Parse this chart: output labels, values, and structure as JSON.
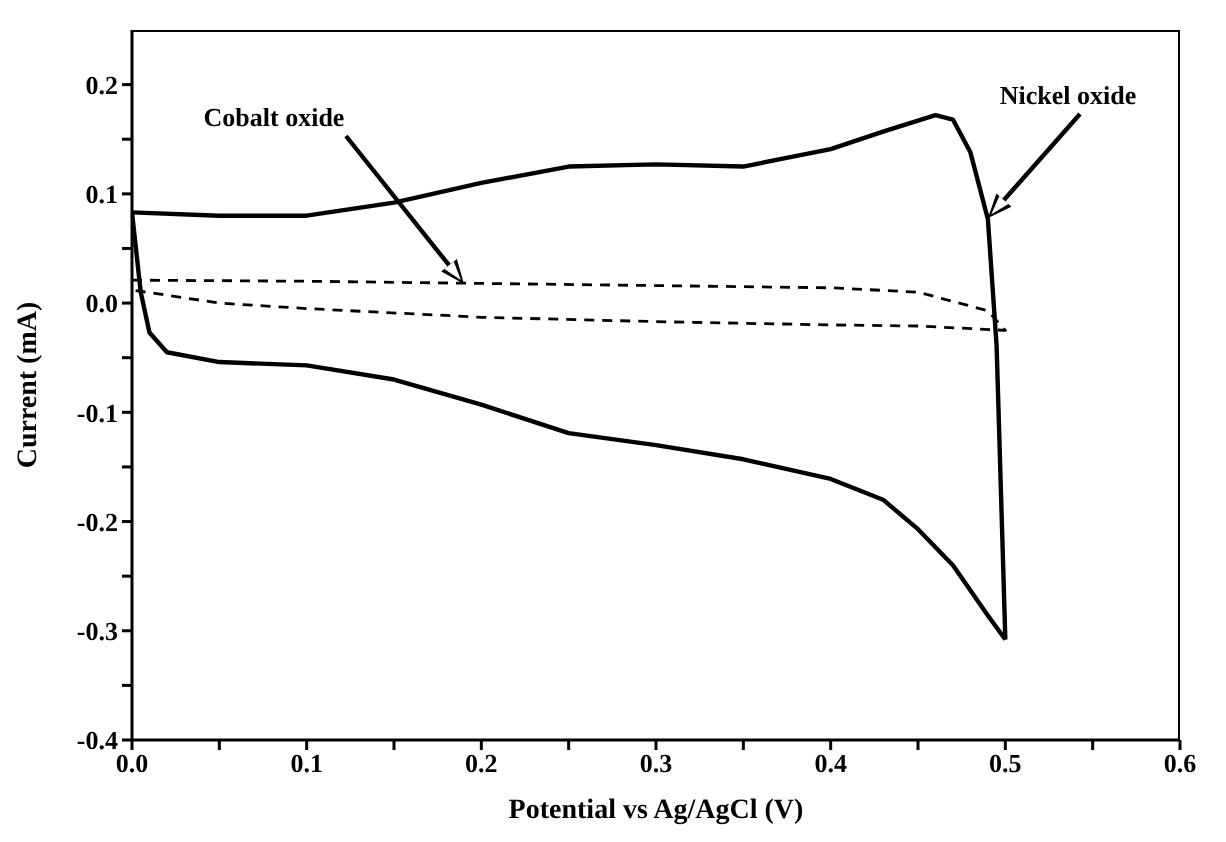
{
  "chart_data": {
    "type": "line",
    "xlabel": "Potential vs Ag/AgCl (V)",
    "ylabel": "Current (mA)",
    "xlim": [
      0,
      0.6
    ],
    "ylim": [
      -0.4,
      0.25
    ],
    "xticks": [
      {
        "value": 0,
        "label": "0.0"
      },
      {
        "value": 0.05,
        "label": null
      },
      0.1,
      {
        "value": 0.15,
        "label": null
      },
      0.2,
      {
        "value": 0.25,
        "label": null
      },
      0.3,
      {
        "value": 0.35,
        "label": null
      },
      0.4,
      {
        "value": 0.45,
        "label": null
      },
      0.5,
      {
        "value": 0.55,
        "label": null
      },
      0.6
    ],
    "yticks": [
      -0.4,
      {
        "value": -0.35,
        "label": null
      },
      -0.3,
      {
        "value": -0.25,
        "label": null
      },
      -0.2,
      {
        "value": -0.15,
        "label": null
      },
      -0.1,
      {
        "value": -0.05,
        "label": null
      },
      {
        "value": 0,
        "label": "0.0"
      },
      {
        "value": 0.05,
        "label": null
      },
      0.1,
      {
        "value": 0.15,
        "label": null
      },
      0.2
    ],
    "marker": "none",
    "series": [
      {
        "color": "#000000",
        "line_style": "dashed",
        "x": [
          0,
          0.1,
          0.2,
          0.3,
          0.4,
          0.45,
          0.49,
          0.5,
          0.45,
          0.4,
          0.3,
          0.2,
          0.1,
          0.05,
          0
        ],
        "values": [
          0.021,
          0.02,
          0.018,
          0.016,
          0.014,
          0.01,
          -0.007,
          -0.025,
          -0.021,
          -0.02,
          -0.017,
          -0.013,
          -0.005,
          0,
          0.012
        ]
      },
      {
        "color": "#000000",
        "line_style": "solid",
        "x": [
          0,
          0.05,
          0.1,
          0.15,
          0.2,
          0.25,
          0.3,
          0.35,
          0.4,
          0.43,
          0.46,
          0.47,
          0.48,
          0.49,
          0.495,
          0.498,
          0.5
        ],
        "values": [
          0.083,
          0.08,
          0.08,
          0.092,
          0.11,
          0.125,
          0.127,
          0.125,
          0.141,
          0.157,
          0.172,
          0.168,
          0.138,
          0.077,
          -0.039,
          -0.2,
          -0.308
        ]
      },
      {
        "color": "#000000",
        "line_style": "solid",
        "x": [
          0.5,
          0.49,
          0.47,
          0.45,
          0.43,
          0.4,
          0.35,
          0.3,
          0.25,
          0.2,
          0.15,
          0.1,
          0.05,
          0.02,
          0.01,
          0.005,
          0
        ],
        "values": [
          -0.308,
          -0.286,
          -0.24,
          -0.207,
          -0.18,
          -0.161,
          -0.143,
          -0.13,
          -0.119,
          -0.093,
          -0.07,
          -0.057,
          -0.054,
          -0.045,
          -0.027,
          0.01,
          0.083
        ]
      }
    ],
    "annotations": [
      "Cobalt oxide",
      "Nickel oxide"
    ]
  }
}
